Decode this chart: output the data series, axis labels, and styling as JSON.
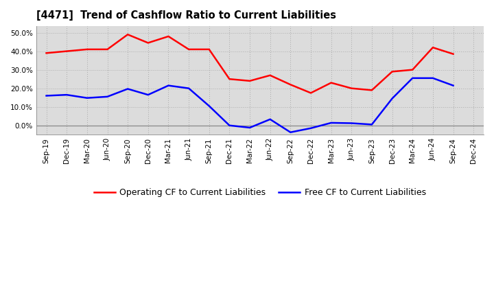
{
  "title": "[4471]  Trend of Cashflow Ratio to Current Liabilities",
  "labels": [
    "Sep-19",
    "Dec-19",
    "Mar-20",
    "Jun-20",
    "Sep-20",
    "Dec-20",
    "Mar-21",
    "Jun-21",
    "Sep-21",
    "Dec-21",
    "Mar-22",
    "Jun-22",
    "Sep-22",
    "Dec-22",
    "Mar-23",
    "Jun-23",
    "Sep-23",
    "Dec-23",
    "Mar-24",
    "Jun-24",
    "Sep-24",
    "Dec-24"
  ],
  "operating_cf": [
    0.39,
    0.4,
    0.41,
    0.41,
    0.49,
    0.445,
    0.48,
    0.41,
    0.41,
    0.25,
    0.24,
    0.27,
    0.22,
    0.175,
    0.23,
    0.2,
    0.19,
    0.29,
    0.3,
    0.42,
    0.385,
    null
  ],
  "free_cf": [
    0.16,
    0.165,
    0.148,
    0.155,
    0.197,
    0.165,
    0.215,
    0.2,
    0.105,
    0.0,
    -0.012,
    0.033,
    -0.037,
    -0.015,
    0.014,
    0.012,
    0.005,
    0.145,
    0.255,
    0.255,
    0.215,
    null
  ],
  "operating_color": "#ff0000",
  "free_color": "#0000ff",
  "background_color": "#ffffff",
  "plot_background": "#dcdcdc",
  "ylim": [
    -0.05,
    0.535
  ],
  "yticks": [
    0.0,
    0.1,
    0.2,
    0.3,
    0.4,
    0.5
  ],
  "legend_op": "Operating CF to Current Liabilities",
  "legend_free": "Free CF to Current Liabilities"
}
